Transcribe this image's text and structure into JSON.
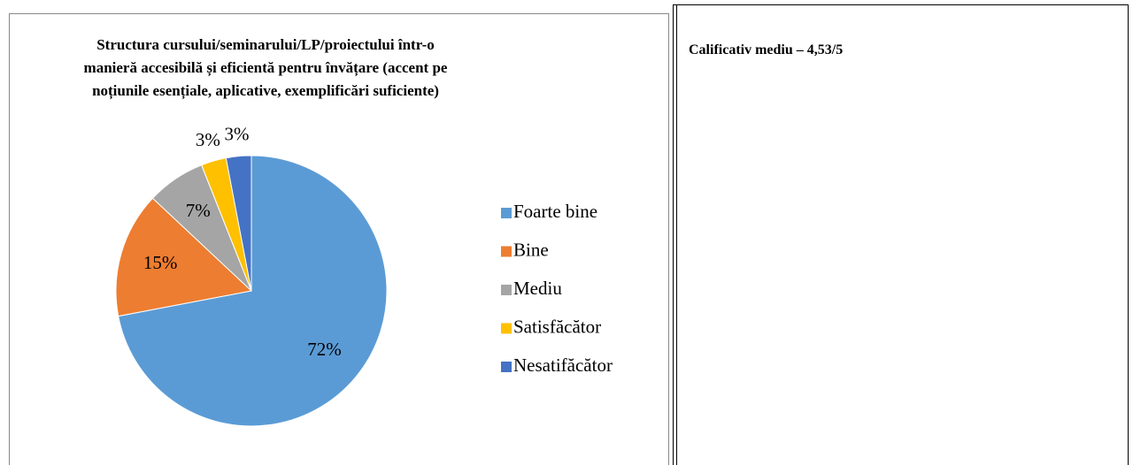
{
  "chart_data": {
    "type": "pie",
    "title": "Structura cursului/seminarului/LP/proiectului într-o manieră accesibilă și eficientă pentru învățare (accent pe noțiunile esențiale, aplicative, exemplificări suficiente)",
    "categories": [
      "Foarte bine",
      "Bine",
      "Mediu",
      "Satisfăcător",
      "Nesatifăcător"
    ],
    "values": [
      72,
      15,
      7,
      3,
      3
    ],
    "value_labels": [
      "72%",
      "15%",
      "7%",
      "3%",
      "3%"
    ],
    "colors": [
      "#5b9bd5",
      "#ed7d31",
      "#a5a5a5",
      "#ffc000",
      "#4472c4"
    ],
    "legend": "right"
  },
  "side_note": "Calificativ mediu – 4,53/5"
}
